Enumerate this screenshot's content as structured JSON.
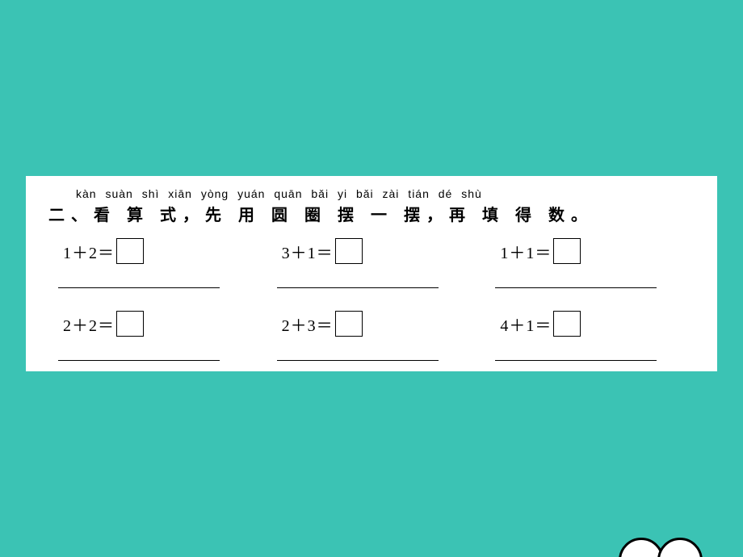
{
  "background_color": "#3bc3b4",
  "worksheet_bg": "#ffffff",
  "pinyin": "kàn suàn shì   xiān yòng yuán quān bǎi yi bǎi   zài tián dé shù",
  "chinese": "二、看 算 式，先 用 圆 圈 摆 一 摆，再 填 得 数。",
  "problems": [
    {
      "expr": "1＋2＝",
      "ans": ""
    },
    {
      "expr": "3＋1＝",
      "ans": ""
    },
    {
      "expr": "1＋1＝",
      "ans": ""
    },
    {
      "expr": "2＋2＝",
      "ans": ""
    },
    {
      "expr": "2＋3＝",
      "ans": ""
    },
    {
      "expr": "4＋1＝",
      "ans": ""
    }
  ]
}
